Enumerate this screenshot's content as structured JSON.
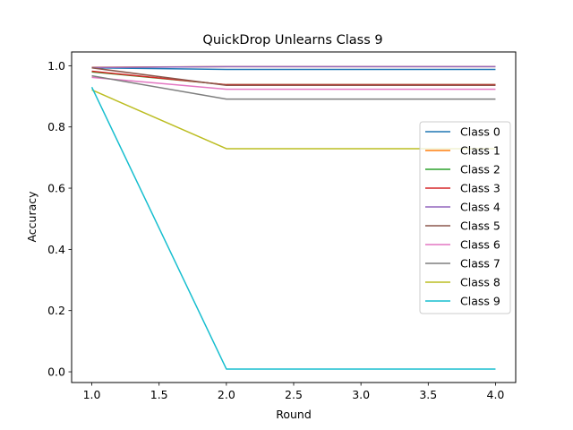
{
  "chart_data": {
    "type": "line",
    "title": "QuickDrop Unlearns Class 9",
    "xlabel": "Round",
    "ylabel": "Accuracy",
    "x": [
      1,
      2,
      3,
      4
    ],
    "xlim": [
      0.85,
      4.15
    ],
    "ylim": [
      -0.035,
      1.045
    ],
    "xticks": [
      1.0,
      1.5,
      2.0,
      2.5,
      3.0,
      3.5,
      4.0
    ],
    "xtick_labels": [
      "1.0",
      "1.5",
      "2.0",
      "2.5",
      "3.0",
      "3.5",
      "4.0"
    ],
    "yticks": [
      0.0,
      0.2,
      0.4,
      0.6,
      0.8,
      1.0
    ],
    "ytick_labels": [
      "0.0",
      "0.2",
      "0.4",
      "0.6",
      "0.8",
      "1.0"
    ],
    "grid": false,
    "legend_position": "center-right",
    "series": [
      {
        "name": "Class 0",
        "color": "#1f77b4",
        "values": [
          0.993,
          0.988,
          0.988,
          0.988
        ]
      },
      {
        "name": "Class 1",
        "color": "#ff7f0e",
        "values": [
          0.995,
          0.997,
          0.997,
          0.997
        ]
      },
      {
        "name": "Class 2",
        "color": "#2ca02c",
        "values": [
          0.98,
          0.938,
          0.938,
          0.938
        ]
      },
      {
        "name": "Class 3",
        "color": "#d62728",
        "values": [
          0.982,
          0.938,
          0.938,
          0.938
        ]
      },
      {
        "name": "Class 4",
        "color": "#9467bd",
        "values": [
          0.994,
          0.997,
          0.997,
          0.997
        ]
      },
      {
        "name": "Class 5",
        "color": "#8c564b",
        "values": [
          0.993,
          0.936,
          0.936,
          0.936
        ]
      },
      {
        "name": "Class 6",
        "color": "#e377c2",
        "values": [
          0.962,
          0.923,
          0.923,
          0.923
        ]
      },
      {
        "name": "Class 7",
        "color": "#7f7f7f",
        "values": [
          0.967,
          0.891,
          0.891,
          0.891
        ]
      },
      {
        "name": "Class 8",
        "color": "#bcbd22",
        "values": [
          0.921,
          0.729,
          0.729,
          0.729
        ]
      },
      {
        "name": "Class 9",
        "color": "#17becf",
        "values": [
          0.93,
          0.009,
          0.009,
          0.009
        ]
      }
    ]
  }
}
